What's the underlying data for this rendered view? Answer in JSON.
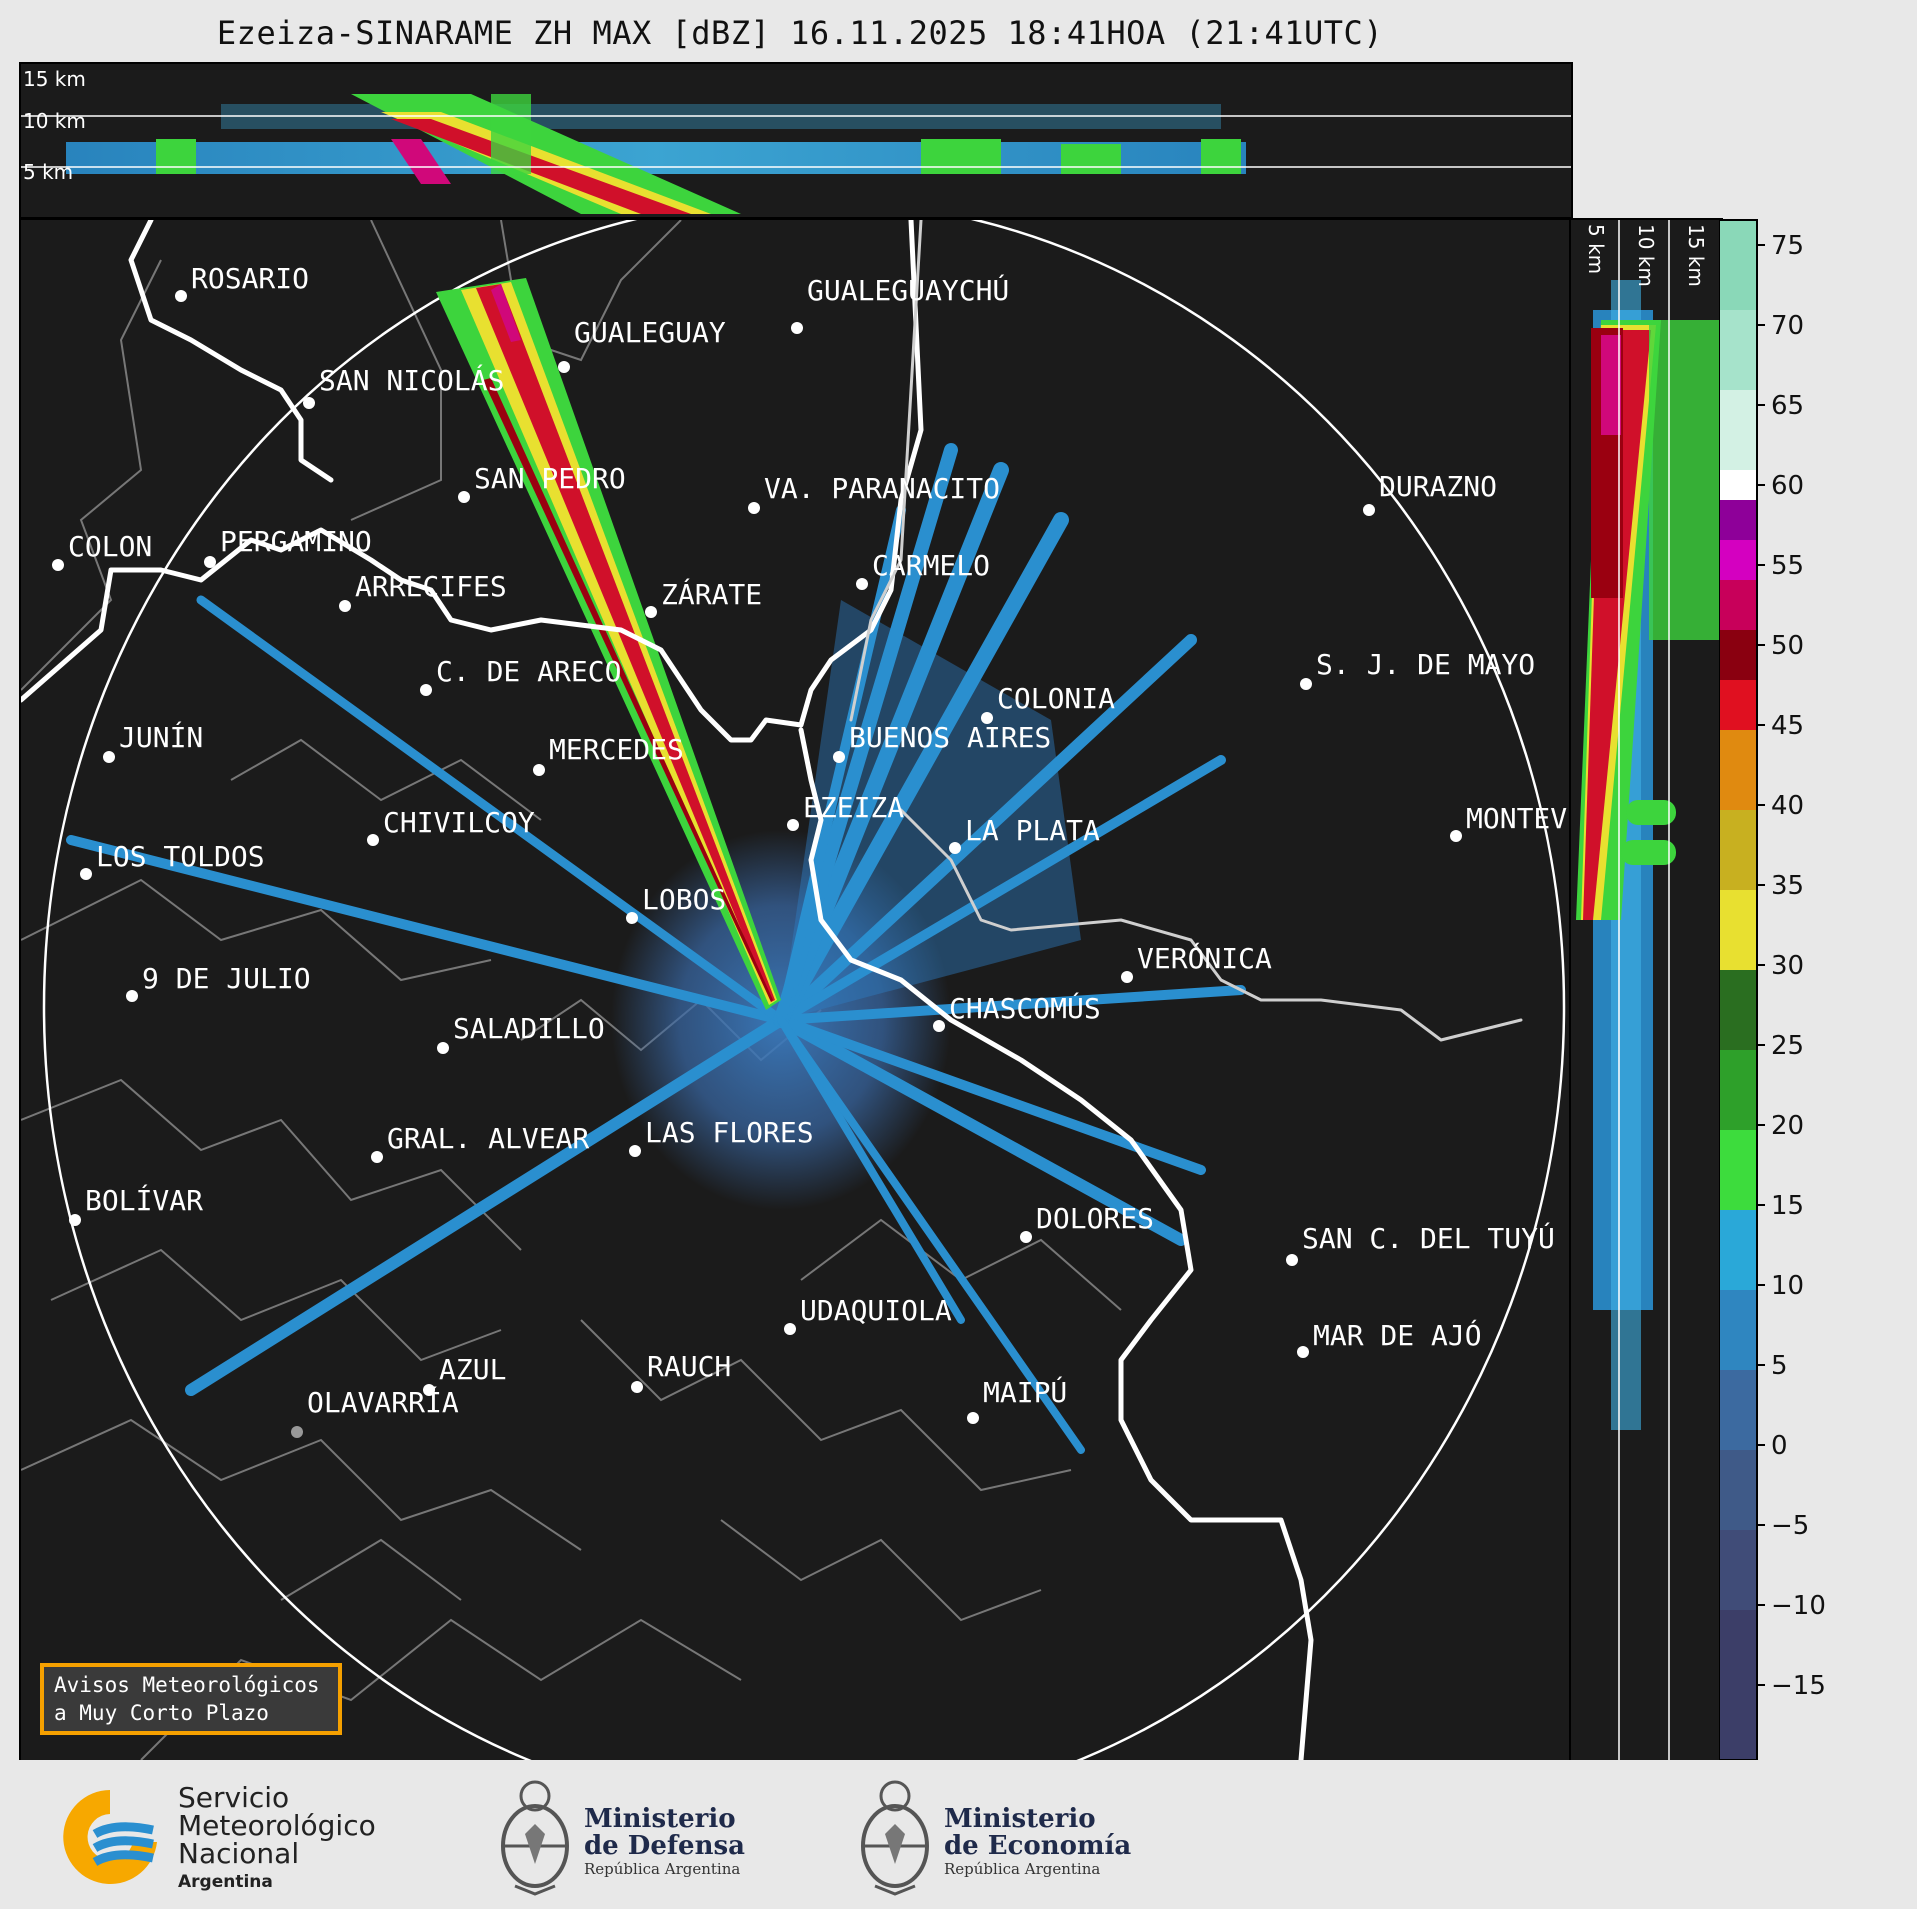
{
  "title": "Ezeiza-SINARAME ZH MAX [dBZ] 16.11.2025 18:41HOA (21:41UTC)",
  "top_panel": {
    "height_labels": [
      "15 km",
      "10 km",
      "5 km"
    ]
  },
  "side_panel": {
    "height_labels": [
      "5 km",
      "10 km",
      "15 km"
    ]
  },
  "colorbar": {
    "ticks": [
      "75",
      "70",
      "65",
      "60",
      "55",
      "50",
      "45",
      "40",
      "35",
      "30",
      "25",
      "20",
      "15",
      "10",
      "5",
      "0",
      "−5",
      "−10",
      "−15"
    ]
  },
  "cities": [
    {
      "name": "ROSARIO"
    },
    {
      "name": "GUALEGUAYCHÚ"
    },
    {
      "name": "GUALEGUAY"
    },
    {
      "name": "SAN NICOLÁS"
    },
    {
      "name": "DURAZNO"
    },
    {
      "name": "SAN PEDRO"
    },
    {
      "name": "VA. PARANACITO"
    },
    {
      "name": "COLON"
    },
    {
      "name": "PERGAMINO"
    },
    {
      "name": "CARMELO"
    },
    {
      "name": "ARRECIFES"
    },
    {
      "name": "ZÁRATE"
    },
    {
      "name": "S. J. DE MAYO"
    },
    {
      "name": "C. DE ARECO"
    },
    {
      "name": "COLONIA"
    },
    {
      "name": "JUNÍN"
    },
    {
      "name": "MERCEDES"
    },
    {
      "name": "BUENOS AIRES"
    },
    {
      "name": "MONTEV"
    },
    {
      "name": "EZEIZA"
    },
    {
      "name": "CHIVILCOY"
    },
    {
      "name": "LA PLATA"
    },
    {
      "name": "LOS TOLDOS"
    },
    {
      "name": "LOBOS"
    },
    {
      "name": "VERÓNICA"
    },
    {
      "name": "9 DE JULIO"
    },
    {
      "name": "CHASCOMÚS"
    },
    {
      "name": "SALADILLO"
    },
    {
      "name": "GRAL. ALVEAR"
    },
    {
      "name": "LAS FLORES"
    },
    {
      "name": "BOLÍVAR"
    },
    {
      "name": "DOLORES"
    },
    {
      "name": "SAN C. DEL TUYÚ"
    },
    {
      "name": "UDAQUIOLA"
    },
    {
      "name": "MAR DE AJÓ"
    },
    {
      "name": "AZUL"
    },
    {
      "name": "RAUCH"
    },
    {
      "name": "MAIPÚ"
    },
    {
      "name": "OLAVARRÍA"
    }
  ],
  "warning_box": {
    "line1": "Avisos Meteorológicos",
    "line2": "a Muy Corto Plazo"
  },
  "footer": {
    "smn": {
      "line1": "Servicio",
      "line2": "Meteorológico",
      "line3": "Nacional",
      "line4": "Argentina"
    },
    "defensa": {
      "line1": "Ministerio",
      "line2": "de Defensa",
      "line3": "República Argentina"
    },
    "economia": {
      "line1": "Ministerio",
      "line2": "de Economía",
      "line3": "República Argentina"
    }
  },
  "colors": {
    "background": "#1b1b1b",
    "echo_blue": "#2a8fcf",
    "echo_light_blue": "#3fb3e6",
    "echo_green": "#3dd43d",
    "echo_yellow": "#e8e030",
    "echo_red": "#d0102a",
    "echo_darkred": "#9a0010",
    "echo_magenta": "#d0087a",
    "warning_border": "#f5a000"
  }
}
